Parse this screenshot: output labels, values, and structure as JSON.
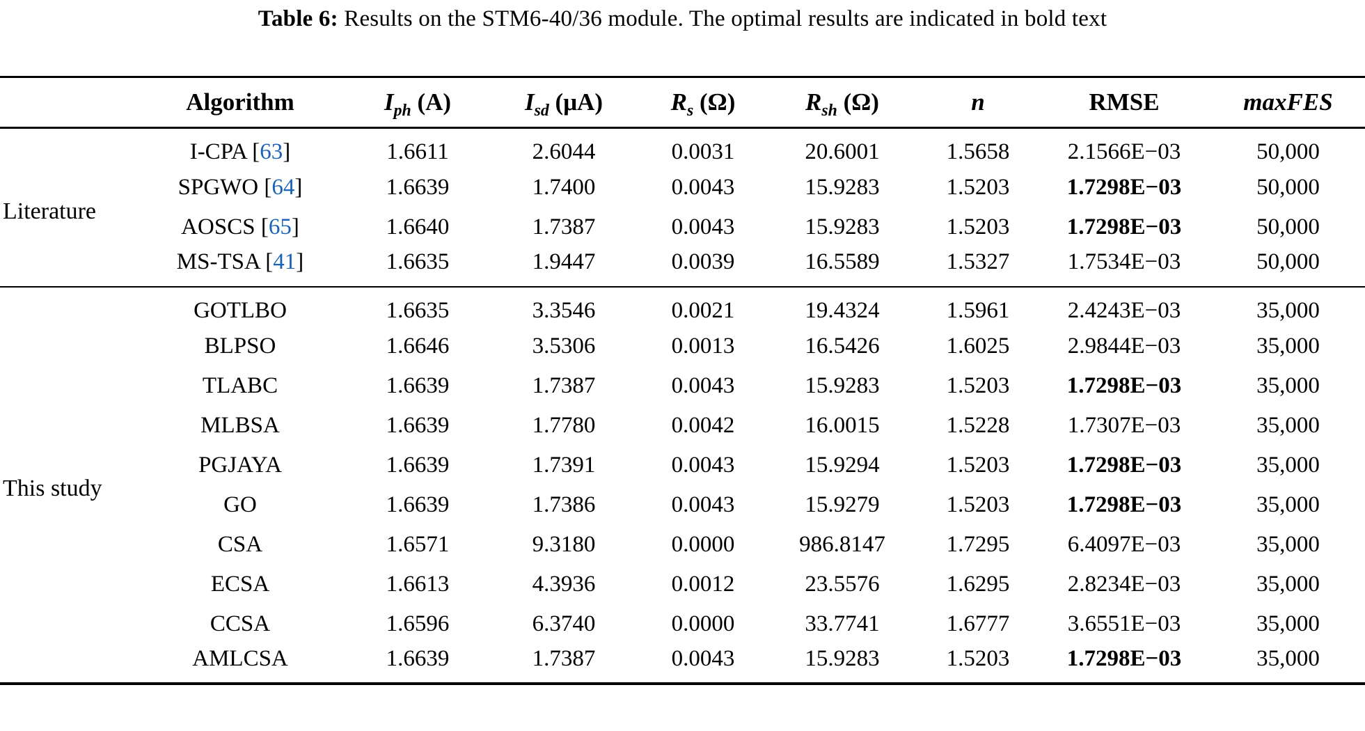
{
  "title": {
    "label": "Table 6:",
    "text": " Results on the STM6-40/36 module. The optimal results are indicated in bold text"
  },
  "colors": {
    "citation_blue": "#1b63b7",
    "text": "#000000",
    "background": "#ffffff"
  },
  "table": {
    "columns": [
      {
        "key": "algorithm",
        "label": "Algorithm",
        "style": "bold"
      },
      {
        "key": "iph",
        "base": "I",
        "sub": "ph",
        "unit": "(A)"
      },
      {
        "key": "isd",
        "base": "I",
        "sub": "sd",
        "unit": "(μA)"
      },
      {
        "key": "rs",
        "base": "R",
        "sub": "s",
        "unit": "(Ω)"
      },
      {
        "key": "rsh",
        "base": "R",
        "sub": "sh",
        "unit": "(Ω)"
      },
      {
        "key": "n",
        "label": "n",
        "style": "bold-italic"
      },
      {
        "key": "rmse",
        "label": "RMSE",
        "style": "bold"
      },
      {
        "key": "maxfes",
        "label": "maxFES",
        "style": "bold-italic"
      }
    ],
    "groups": [
      {
        "label": "Literature",
        "rows": [
          {
            "algorithm": "I-CPA",
            "ref": "63",
            "iph": "1.6611",
            "isd": "2.6044",
            "rs": "0.0031",
            "rsh": "20.6001",
            "n": "1.5658",
            "rmse": "2.1566E−03",
            "rmse_bold": false,
            "maxfes": "50,000"
          },
          {
            "algorithm": "SPGWO",
            "ref": "64",
            "iph": "1.6639",
            "isd": "1.7400",
            "rs": "0.0043",
            "rsh": "15.9283",
            "n": "1.5203",
            "rmse": "1.7298E−03",
            "rmse_bold": true,
            "maxfes": "50,000"
          },
          {
            "algorithm": "AOSCS",
            "ref": "65",
            "iph": "1.6640",
            "isd": "1.7387",
            "rs": "0.0043",
            "rsh": "15.9283",
            "n": "1.5203",
            "rmse": "1.7298E−03",
            "rmse_bold": true,
            "maxfes": "50,000"
          },
          {
            "algorithm": "MS-TSA",
            "ref": "41",
            "iph": "1.6635",
            "isd": "1.9447",
            "rs": "0.0039",
            "rsh": "16.5589",
            "n": "1.5327",
            "rmse": "1.7534E−03",
            "rmse_bold": false,
            "maxfes": "50,000"
          }
        ]
      },
      {
        "label": "This study",
        "rows": [
          {
            "algorithm": "GOTLBO",
            "ref": null,
            "iph": "1.6635",
            "isd": "3.3546",
            "rs": "0.0021",
            "rsh": "19.4324",
            "n": "1.5961",
            "rmse": "2.4243E−03",
            "rmse_bold": false,
            "maxfes": "35,000"
          },
          {
            "algorithm": "BLPSO",
            "ref": null,
            "iph": "1.6646",
            "isd": "3.5306",
            "rs": "0.0013",
            "rsh": "16.5426",
            "n": "1.6025",
            "rmse": "2.9844E−03",
            "rmse_bold": false,
            "maxfes": "35,000"
          },
          {
            "algorithm": "TLABC",
            "ref": null,
            "iph": "1.6639",
            "isd": "1.7387",
            "rs": "0.0043",
            "rsh": "15.9283",
            "n": "1.5203",
            "rmse": "1.7298E−03",
            "rmse_bold": true,
            "maxfes": "35,000"
          },
          {
            "algorithm": "MLBSA",
            "ref": null,
            "iph": "1.6639",
            "isd": "1.7780",
            "rs": "0.0042",
            "rsh": "16.0015",
            "n": "1.5228",
            "rmse": "1.7307E−03",
            "rmse_bold": false,
            "maxfes": "35,000"
          },
          {
            "algorithm": "PGJAYA",
            "ref": null,
            "iph": "1.6639",
            "isd": "1.7391",
            "rs": "0.0043",
            "rsh": "15.9294",
            "n": "1.5203",
            "rmse": "1.7298E−03",
            "rmse_bold": true,
            "maxfes": "35,000"
          },
          {
            "algorithm": "GO",
            "ref": null,
            "iph": "1.6639",
            "isd": "1.7386",
            "rs": "0.0043",
            "rsh": "15.9279",
            "n": "1.5203",
            "rmse": "1.7298E−03",
            "rmse_bold": true,
            "maxfes": "35,000"
          },
          {
            "algorithm": "CSA",
            "ref": null,
            "iph": "1.6571",
            "isd": "9.3180",
            "rs": "0.0000",
            "rsh": "986.8147",
            "n": "1.7295",
            "rmse": "6.4097E−03",
            "rmse_bold": false,
            "maxfes": "35,000"
          },
          {
            "algorithm": "ECSA",
            "ref": null,
            "iph": "1.6613",
            "isd": "4.3936",
            "rs": "0.0012",
            "rsh": "23.5576",
            "n": "1.6295",
            "rmse": "2.8234E−03",
            "rmse_bold": false,
            "maxfes": "35,000"
          },
          {
            "algorithm": "CCSA",
            "ref": null,
            "iph": "1.6596",
            "isd": "6.3740",
            "rs": "0.0000",
            "rsh": "33.7741",
            "n": "1.6777",
            "rmse": "3.6551E−03",
            "rmse_bold": false,
            "maxfes": "35,000"
          },
          {
            "algorithm": "AMLCSA",
            "ref": null,
            "iph": "1.6639",
            "isd": "1.7387",
            "rs": "0.0043",
            "rsh": "15.9283",
            "n": "1.5203",
            "rmse": "1.7298E−03",
            "rmse_bold": true,
            "maxfes": "35,000"
          }
        ]
      }
    ]
  }
}
